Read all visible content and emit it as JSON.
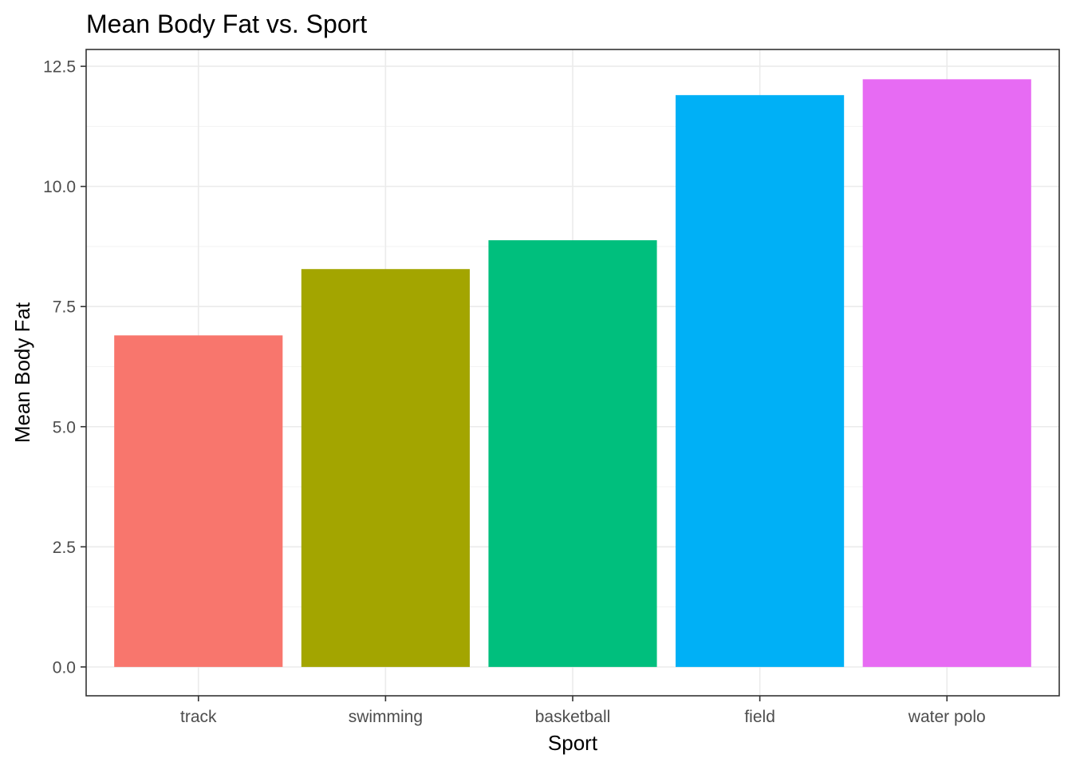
{
  "chart_data": {
    "type": "bar",
    "title": "Mean Body Fat vs. Sport",
    "xlabel": "Sport",
    "ylabel": "Mean Body Fat",
    "categories": [
      "track",
      "swimming",
      "basketball",
      "field",
      "water polo"
    ],
    "values": [
      6.9,
      8.28,
      8.88,
      11.9,
      12.23
    ],
    "colors": [
      "#F8766D",
      "#A3A500",
      "#00BF7D",
      "#00B0F6",
      "#E76BF3"
    ],
    "ylim": [
      -0.6,
      12.85
    ],
    "yticks": [
      0.0,
      2.5,
      5.0,
      7.5,
      10.0,
      12.5
    ],
    "ytick_labels": [
      "0.0",
      "2.5",
      "5.0",
      "7.5",
      "10.0",
      "12.5"
    ],
    "grid": true,
    "legend": "none"
  }
}
